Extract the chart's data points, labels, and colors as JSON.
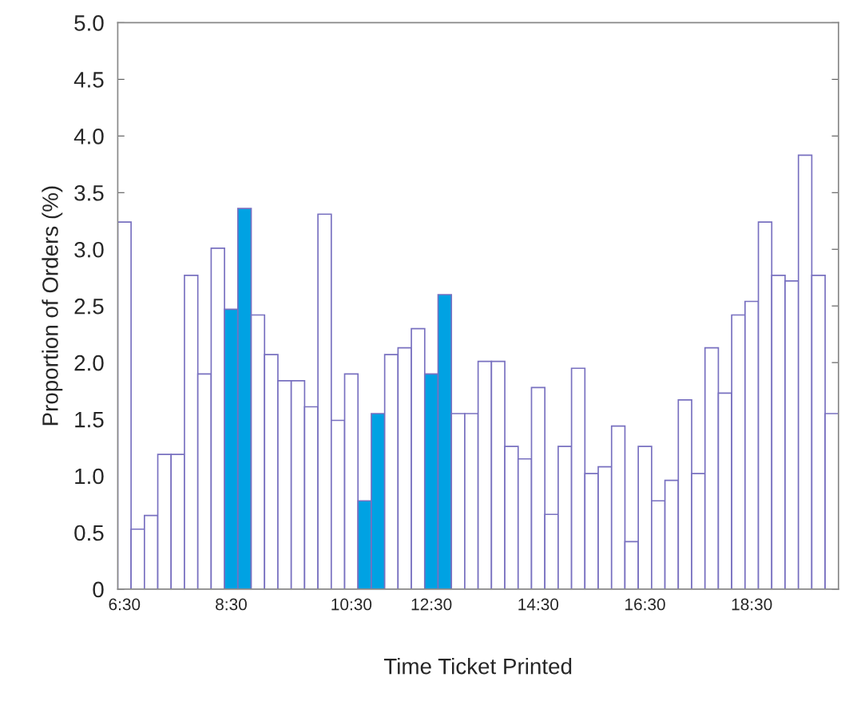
{
  "chart_data": {
    "type": "bar",
    "xlabel": "Time Ticket Printed",
    "ylabel": "Proportion of Orders (%)",
    "categories": [
      "6:30",
      null,
      null,
      null,
      null,
      null,
      null,
      null,
      "8:30",
      null,
      null,
      null,
      null,
      null,
      null,
      null,
      null,
      "10:30",
      null,
      null,
      null,
      null,
      null,
      "12:30",
      null,
      null,
      null,
      null,
      null,
      null,
      null,
      "14:30",
      null,
      null,
      null,
      null,
      null,
      null,
      null,
      "16:30",
      null,
      null,
      null,
      null,
      null,
      null,
      null,
      "18:30",
      null,
      null,
      null,
      null,
      null,
      null
    ],
    "values": [
      3.24,
      0.53,
      0.65,
      1.19,
      1.19,
      2.77,
      1.9,
      3.01,
      2.47,
      3.36,
      2.42,
      2.07,
      1.84,
      1.84,
      1.61,
      3.31,
      1.49,
      1.9,
      0.78,
      1.55,
      2.07,
      2.13,
      2.3,
      1.9,
      2.6,
      1.55,
      1.55,
      2.01,
      2.01,
      1.26,
      1.15,
      1.78,
      0.66,
      1.26,
      1.95,
      1.02,
      1.08,
      1.44,
      0.42,
      1.26,
      0.78,
      0.96,
      1.67,
      1.02,
      2.13,
      1.73,
      2.42,
      2.54,
      3.24,
      2.77,
      2.72,
      3.83,
      2.77,
      1.55
    ],
    "colors": [
      "#ffffff",
      "#ffffff",
      "#ffffff",
      "#ffffff",
      "#ffffff",
      "#ffffff",
      "#ffffff",
      "#ffffff",
      "#00a2e3",
      "#00a2e3",
      "#ffffff",
      "#ffffff",
      "#ffffff",
      "#ffffff",
      "#ffffff",
      "#ffffff",
      "#ffffff",
      "#ffffff",
      "#00a2e3",
      "#00a2e3",
      "#ffffff",
      "#ffffff",
      "#ffffff",
      "#00a2e3",
      "#00a2e3",
      "#ffffff",
      "#ffffff",
      "#ffffff",
      "#ffffff",
      "#ffffff",
      "#ffffff",
      "#ffffff",
      "#ffffff",
      "#ffffff",
      "#ffffff",
      "#ffffff",
      "#ffffff",
      "#ffffff",
      "#ffffff",
      "#ffffff",
      "#ffffff",
      "#ffffff",
      "#ffffff",
      "#ffffff",
      "#ffffff",
      "#ffffff",
      "#ffffff",
      "#ffffff",
      "#ffffff",
      "#ffffff",
      "#ffffff",
      "#ffffff",
      "#ffffff",
      "#ffffff"
    ],
    "ylim": [
      0,
      5
    ],
    "yticks": [
      0,
      0.5,
      {
        "value": 1,
        "label": "1.0"
      },
      1.5,
      {
        "value": 2,
        "label": "2.0"
      },
      2.5,
      {
        "value": 3,
        "label": "3.0"
      },
      3.5,
      {
        "value": 4,
        "label": "4.0"
      },
      4.5,
      {
        "value": 5,
        "label": "5.0"
      }
    ],
    "grid": false,
    "legend": false
  }
}
